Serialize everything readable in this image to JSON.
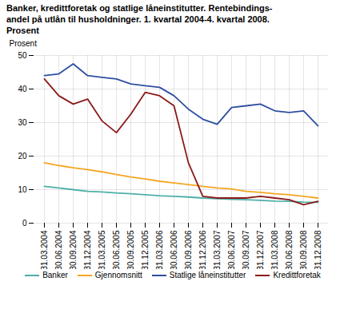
{
  "chart_data": {
    "type": "line",
    "title": "Banker, kredittforetak og statlige låneinstitutter. Rentebindings-\nandel på utlån til husholdninger. 1. kvartal 2004-4. kvartal 2008.",
    "subtitle": "Prosent",
    "ylabel": "Prosent",
    "categories": [
      "31.03.2004",
      "30.06.2004",
      "30.09.2004",
      "31.12.2004",
      "31.03.2005",
      "30.06.2005",
      "30.09.2005",
      "31.12.2005",
      "31.03.2006",
      "30.06.2006",
      "30.09.2006",
      "31.12.2006",
      "31.03.2007",
      "30.06.2007",
      "30.09.2007",
      "31.12.2007",
      "31.03.2008",
      "30.06.2008",
      "30.09.2008",
      "31.12.2008"
    ],
    "series": [
      {
        "name": "Banker",
        "color": "#4DAFA8",
        "values": [
          11.0,
          10.5,
          10.0,
          9.5,
          9.3,
          9.0,
          8.8,
          8.5,
          8.2,
          8.0,
          7.8,
          7.5,
          7.3,
          7.1,
          7.0,
          6.8,
          6.6,
          6.5,
          6.3,
          6.2
        ]
      },
      {
        "name": "Gjennomsnitt",
        "color": "#F5A623",
        "values": [
          18.0,
          17.2,
          16.5,
          16.0,
          15.3,
          14.5,
          13.8,
          13.2,
          12.5,
          12.0,
          11.5,
          11.0,
          10.5,
          10.2,
          9.5,
          9.2,
          8.8,
          8.5,
          8.0,
          7.5
        ]
      },
      {
        "name": "Statlige låneinstitutter",
        "color": "#2E4FA0",
        "values": [
          44.0,
          44.5,
          47.5,
          44.0,
          43.5,
          43.0,
          41.5,
          41.0,
          40.5,
          38.0,
          34.0,
          31.0,
          29.5,
          34.5,
          35.0,
          35.5,
          33.5,
          33.0,
          33.5,
          29.0
        ]
      },
      {
        "name": "Kredittforetak",
        "color": "#8B1A1A",
        "values": [
          43.0,
          38.0,
          35.5,
          37.0,
          30.5,
          27.0,
          32.5,
          39.0,
          38.0,
          35.0,
          18.0,
          8.0,
          7.5,
          7.5,
          7.5,
          8.0,
          7.5,
          7.0,
          5.5,
          6.5
        ]
      }
    ],
    "ylim": [
      0,
      50
    ],
    "yticks": [
      0,
      10,
      20,
      30,
      40,
      50
    ],
    "grid": true,
    "legend": "bottom"
  }
}
